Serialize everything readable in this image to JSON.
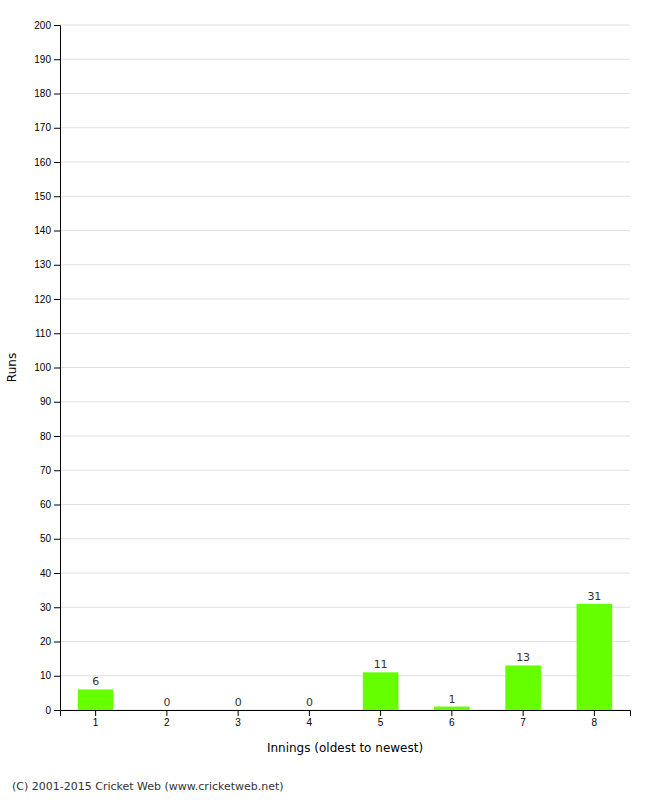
{
  "chart_data": {
    "type": "bar",
    "xlabel": "Innings (oldest to newest)",
    "ylabel": "Runs",
    "categories": [
      1,
      2,
      3,
      4,
      5,
      6,
      7,
      8
    ],
    "values": [
      6,
      0,
      0,
      0,
      11,
      1,
      13,
      31
    ],
    "color": "#66ff00",
    "ylim": [
      0,
      200
    ],
    "yticks": [
      0,
      10,
      20,
      30,
      40,
      50,
      60,
      70,
      80,
      90,
      100,
      110,
      120,
      130,
      140,
      150,
      160,
      170,
      180,
      190,
      200
    ],
    "grid": true,
    "data_labels": true,
    "annotations": [
      "(C) 2001-2015 Cricket Web (www.cricketweb.net)"
    ]
  }
}
